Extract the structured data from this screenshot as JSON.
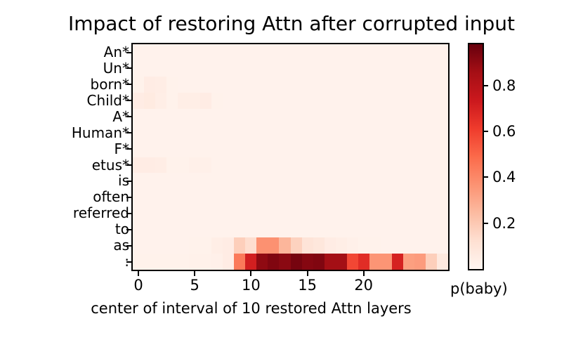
{
  "title": "Impact of restoring Attn after corrupted input",
  "chart_data": {
    "type": "heatmap",
    "title": "Impact of restoring Attn after corrupted input",
    "xlabel": "center of interval of 10 restored Attn layers",
    "colorbar_label": "p(baby)",
    "colormap": "Reds",
    "vmin": 0,
    "vmax": 0.98,
    "x_ticks": [
      0,
      5,
      10,
      15,
      20
    ],
    "colorbar_ticks": [
      0.2,
      0.4,
      0.6,
      0.8
    ],
    "n_cols": 28,
    "rows": [
      "An*",
      "Un*",
      "born*",
      "Child*",
      "A*",
      "Human*",
      "F*",
      "etus*",
      "is",
      "often",
      "referred",
      "to",
      "as",
      ":"
    ],
    "values": [
      [
        0.015,
        0.015,
        0.015,
        0.015,
        0.015,
        0.015,
        0.015,
        0.015,
        0.015,
        0.015,
        0.015,
        0.015,
        0.015,
        0.015,
        0.015,
        0.015,
        0.015,
        0.015,
        0.015,
        0.015,
        0.015,
        0.015,
        0.015,
        0.015,
        0.015,
        0.015,
        0.015,
        0.015
      ],
      [
        0.015,
        0.015,
        0.015,
        0.015,
        0.015,
        0.015,
        0.015,
        0.015,
        0.015,
        0.015,
        0.015,
        0.015,
        0.015,
        0.015,
        0.015,
        0.015,
        0.015,
        0.015,
        0.015,
        0.015,
        0.015,
        0.015,
        0.015,
        0.015,
        0.015,
        0.015,
        0.015,
        0.015
      ],
      [
        0.02,
        0.05,
        0.045,
        0.02,
        0.015,
        0.015,
        0.015,
        0.015,
        0.015,
        0.015,
        0.015,
        0.015,
        0.015,
        0.015,
        0.015,
        0.015,
        0.015,
        0.015,
        0.015,
        0.015,
        0.015,
        0.015,
        0.015,
        0.015,
        0.015,
        0.015,
        0.015,
        0.015
      ],
      [
        0.05,
        0.06,
        0.04,
        0.02,
        0.04,
        0.04,
        0.05,
        0.02,
        0.015,
        0.015,
        0.015,
        0.015,
        0.015,
        0.015,
        0.015,
        0.015,
        0.015,
        0.015,
        0.015,
        0.015,
        0.015,
        0.015,
        0.015,
        0.015,
        0.015,
        0.015,
        0.015,
        0.015
      ],
      [
        0.015,
        0.015,
        0.015,
        0.015,
        0.015,
        0.015,
        0.015,
        0.015,
        0.015,
        0.015,
        0.015,
        0.015,
        0.015,
        0.015,
        0.015,
        0.015,
        0.015,
        0.015,
        0.015,
        0.015,
        0.015,
        0.015,
        0.015,
        0.015,
        0.015,
        0.015,
        0.015,
        0.015
      ],
      [
        0.015,
        0.015,
        0.015,
        0.015,
        0.015,
        0.015,
        0.015,
        0.015,
        0.015,
        0.015,
        0.015,
        0.015,
        0.015,
        0.015,
        0.015,
        0.015,
        0.015,
        0.015,
        0.015,
        0.015,
        0.015,
        0.015,
        0.015,
        0.015,
        0.015,
        0.015,
        0.015,
        0.015
      ],
      [
        0.015,
        0.015,
        0.015,
        0.015,
        0.015,
        0.015,
        0.015,
        0.015,
        0.015,
        0.015,
        0.015,
        0.015,
        0.015,
        0.015,
        0.015,
        0.015,
        0.015,
        0.015,
        0.015,
        0.015,
        0.015,
        0.015,
        0.015,
        0.015,
        0.015,
        0.015,
        0.015,
        0.015
      ],
      [
        0.05,
        0.05,
        0.045,
        0.02,
        0.02,
        0.03,
        0.03,
        0.015,
        0.015,
        0.015,
        0.015,
        0.015,
        0.015,
        0.015,
        0.015,
        0.015,
        0.015,
        0.015,
        0.015,
        0.015,
        0.015,
        0.015,
        0.015,
        0.015,
        0.015,
        0.015,
        0.015,
        0.015
      ],
      [
        0.015,
        0.015,
        0.015,
        0.015,
        0.015,
        0.015,
        0.015,
        0.015,
        0.015,
        0.015,
        0.015,
        0.015,
        0.015,
        0.015,
        0.015,
        0.015,
        0.015,
        0.015,
        0.015,
        0.015,
        0.015,
        0.015,
        0.015,
        0.015,
        0.015,
        0.015,
        0.015,
        0.015
      ],
      [
        0.015,
        0.015,
        0.015,
        0.015,
        0.015,
        0.015,
        0.015,
        0.015,
        0.015,
        0.015,
        0.015,
        0.015,
        0.015,
        0.015,
        0.015,
        0.015,
        0.015,
        0.015,
        0.015,
        0.015,
        0.015,
        0.015,
        0.015,
        0.015,
        0.015,
        0.015,
        0.015,
        0.015
      ],
      [
        0.015,
        0.015,
        0.015,
        0.015,
        0.015,
        0.015,
        0.015,
        0.015,
        0.015,
        0.015,
        0.015,
        0.015,
        0.015,
        0.015,
        0.015,
        0.015,
        0.015,
        0.015,
        0.015,
        0.015,
        0.015,
        0.015,
        0.015,
        0.015,
        0.015,
        0.015,
        0.015,
        0.015
      ],
      [
        0.015,
        0.015,
        0.015,
        0.015,
        0.015,
        0.015,
        0.015,
        0.015,
        0.015,
        0.015,
        0.015,
        0.015,
        0.015,
        0.015,
        0.015,
        0.015,
        0.015,
        0.015,
        0.015,
        0.015,
        0.015,
        0.015,
        0.015,
        0.015,
        0.015,
        0.015,
        0.015,
        0.015
      ],
      [
        0.015,
        0.015,
        0.015,
        0.015,
        0.015,
        0.02,
        0.02,
        0.04,
        0.05,
        0.18,
        0.13,
        0.37,
        0.37,
        0.26,
        0.17,
        0.1,
        0.08,
        0.05,
        0.04,
        0.03,
        0.02,
        0.02,
        0.015,
        0.015,
        0.015,
        0.015,
        0.015,
        0.015
      ],
      [
        0.02,
        0.02,
        0.02,
        0.02,
        0.02,
        0.025,
        0.025,
        0.03,
        0.05,
        0.44,
        0.71,
        0.9,
        0.93,
        0.91,
        0.95,
        0.92,
        0.93,
        0.86,
        0.86,
        0.58,
        0.66,
        0.36,
        0.36,
        0.7,
        0.33,
        0.34,
        0.18,
        0.07
      ]
    ]
  }
}
